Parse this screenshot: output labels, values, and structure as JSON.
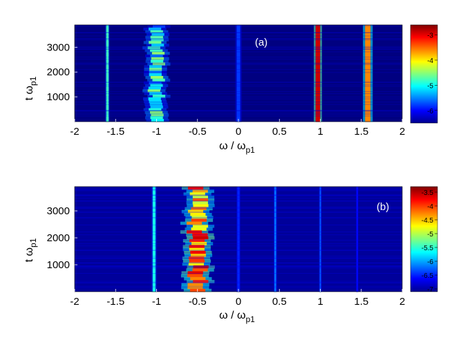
{
  "chart_data": [
    {
      "type": "heatmap",
      "panel_label": "(a)",
      "xlabel": {
        "main": "ω / ω",
        "sub": "p1"
      },
      "ylabel": {
        "main": "t ω",
        "sub": "p1"
      },
      "xlim": [
        -2,
        2
      ],
      "ylim": [
        0,
        3900
      ],
      "xticks": [
        "-2",
        "-1.5",
        "-1",
        "-0.5",
        "0",
        "0.5",
        "1",
        "1.5",
        "2"
      ],
      "yticks": [
        "1000",
        "2000",
        "3000"
      ],
      "colorbar": {
        "min": -6.5,
        "max": -2.6,
        "ticks": [
          "-3",
          "-4",
          "-5",
          "-6"
        ]
      },
      "background_level": -6.5,
      "bands": [
        {
          "omega": -1.6,
          "level": -4.8,
          "width": 0.05
        },
        {
          "omega": -1.0,
          "level": -5.0,
          "width": 0.28,
          "mottled": true
        },
        {
          "omega": 0.0,
          "level": -5.8,
          "width": 0.08
        },
        {
          "omega": 0.97,
          "level": -2.9,
          "width": 0.1
        },
        {
          "omega": 1.58,
          "level": -3.6,
          "width": 0.12
        }
      ]
    },
    {
      "type": "heatmap",
      "panel_label": "(b)",
      "xlabel": {
        "main": "ω / ω",
        "sub": "p1"
      },
      "ylabel": {
        "main": "t ω",
        "sub": "p1"
      },
      "xlim": [
        -2,
        2
      ],
      "ylim": [
        0,
        3900
      ],
      "xticks": [
        "-2",
        "-1.5",
        "-1",
        "-0.5",
        "0",
        "0.5",
        "1",
        "1.5",
        "2"
      ],
      "yticks": [
        "1000",
        "2000",
        "3000"
      ],
      "colorbar": {
        "min": -7.1,
        "max": -3.3,
        "ticks": [
          "-3.5",
          "-4",
          "-4.5",
          "-5",
          "-5.5",
          "-6",
          "-6.5",
          "-7"
        ]
      },
      "background_level": -7.0,
      "bands": [
        {
          "omega": -1.03,
          "level": -5.6,
          "width": 0.06
        },
        {
          "omega": -0.5,
          "level": -4.2,
          "width": 0.34,
          "mottled": true
        },
        {
          "omega": 0.0,
          "level": -6.5,
          "width": 0.05
        },
        {
          "omega": 0.45,
          "level": -6.2,
          "width": 0.04
        },
        {
          "omega": 1.0,
          "level": -6.3,
          "width": 0.03
        },
        {
          "omega": 1.45,
          "level": -6.6,
          "width": 0.03
        }
      ]
    }
  ]
}
